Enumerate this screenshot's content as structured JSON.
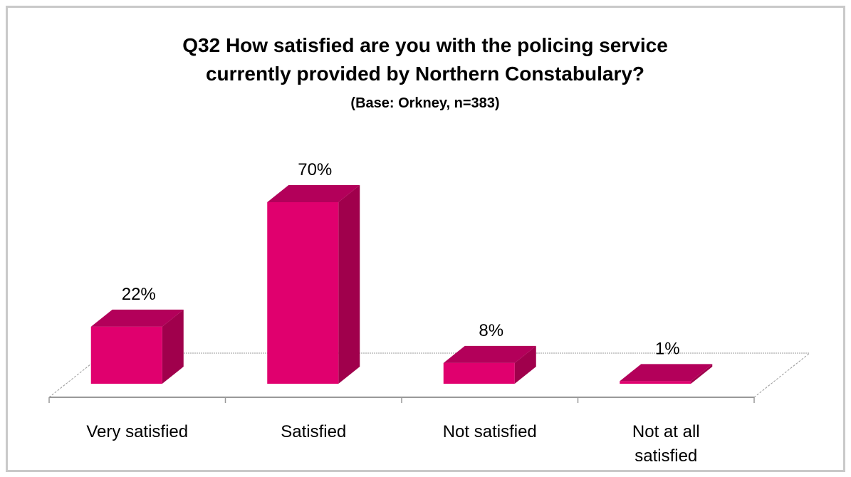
{
  "chart_data": {
    "type": "bar",
    "title": "Q32 How satisfied are you with the policing service",
    "title_line2": "currently provided by Northern Constabulary?",
    "subtitle": "(Base: Orkney, n=383)",
    "categories": [
      "Very satisfied",
      "Satisfied",
      "Not satisfied",
      "Not at all satisfied"
    ],
    "category_lines": [
      [
        "Very satisfied"
      ],
      [
        "Satisfied"
      ],
      [
        "Not satisfied"
      ],
      [
        "Not at all",
        "satisfied"
      ]
    ],
    "values": [
      22,
      70,
      8,
      1
    ],
    "data_labels": [
      "22%",
      "70%",
      "8%",
      "1%"
    ],
    "value_unit": "%",
    "ylim": [
      0,
      70
    ],
    "style": "3d-column",
    "grid": false,
    "legend": "none",
    "colors": {
      "bar_front": "#e0006e",
      "bar_side": "#a0004c",
      "bar_top": "#b3005a",
      "floor_line": "#999999"
    }
  }
}
